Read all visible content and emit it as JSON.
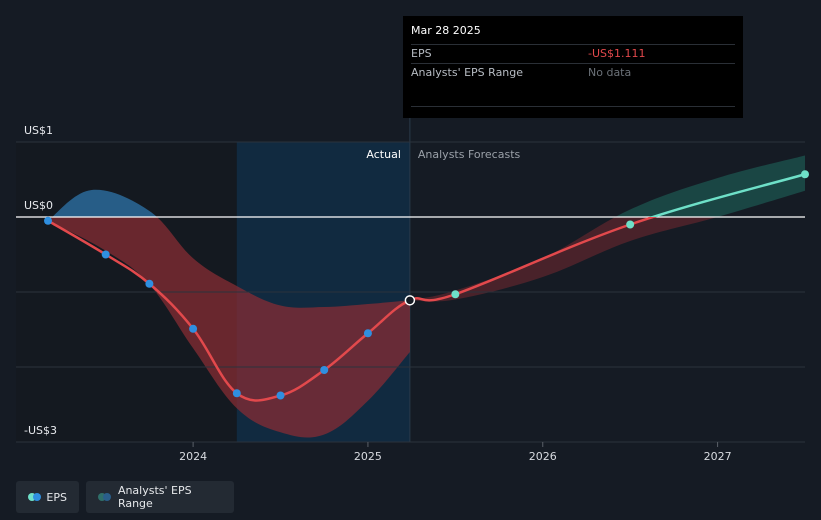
{
  "tooltip": {
    "date": "Mar 28 2025",
    "eps_label": "EPS",
    "eps_value": "-US$1.111",
    "range_label": "Analysts' EPS Range",
    "range_value": "No data"
  },
  "legend": {
    "eps_label": "EPS",
    "range_label": "Analysts' EPS Range"
  },
  "colors": {
    "actual_point": "#2f8fe0",
    "forecast_point": "#6ee0c8",
    "eps_line_negative": "#e2494c",
    "eps_line_positive": "#6ee0c8",
    "range_positive": "#2a6a9a",
    "range_negative": "#8a2c33",
    "actual_band": "#10304a"
  },
  "chart_data": {
    "type": "line",
    "region_labels": {
      "actual": "Actual",
      "forecast": "Analysts Forecasts"
    },
    "y_tick_labels": [
      {
        "value": 1,
        "label": "US$1"
      },
      {
        "value": 0,
        "label": "US$0"
      },
      {
        "value": -3,
        "label": "-US$3"
      }
    ],
    "x_tick_labels": [
      "2024",
      "2025",
      "2026",
      "2027"
    ],
    "x_ticks": [
      2024.0,
      2025.0,
      2026.0,
      2027.0
    ],
    "xlim": [
      2023.17,
      2027.5
    ],
    "ylim": [
      -3,
      1
    ],
    "actual_range": [
      2024.25,
      2025.24
    ],
    "series": [
      {
        "name": "EPS",
        "points": [
          {
            "x": 2023.17,
            "y": -0.05,
            "kind": "actual"
          },
          {
            "x": 2023.5,
            "y": -0.5,
            "kind": "actual"
          },
          {
            "x": 2023.75,
            "y": -0.89,
            "kind": "actual"
          },
          {
            "x": 2024.0,
            "y": -1.49,
            "kind": "actual"
          },
          {
            "x": 2024.25,
            "y": -2.35,
            "kind": "actual"
          },
          {
            "x": 2024.5,
            "y": -2.38,
            "kind": "actual"
          },
          {
            "x": 2024.75,
            "y": -2.04,
            "kind": "actual"
          },
          {
            "x": 2025.0,
            "y": -1.55,
            "kind": "actual"
          },
          {
            "x": 2025.24,
            "y": -1.111,
            "kind": "highlight"
          },
          {
            "x": 2025.5,
            "y": -1.03,
            "kind": "forecast"
          },
          {
            "x": 2026.5,
            "y": -0.1,
            "kind": "forecast"
          },
          {
            "x": 2027.5,
            "y": 0.57,
            "kind": "forecast"
          }
        ]
      }
    ],
    "eps_range_past": {
      "upper": [
        [
          2023.17,
          -0.05
        ],
        [
          2023.42,
          0.36
        ],
        [
          2023.75,
          0.08
        ],
        [
          2024.0,
          -0.55
        ],
        [
          2024.25,
          -0.92
        ],
        [
          2024.5,
          -1.18
        ],
        [
          2024.75,
          -1.2
        ],
        [
          2025.0,
          -1.16
        ],
        [
          2025.24,
          -1.11
        ]
      ],
      "lower": [
        [
          2025.24,
          -1.8
        ],
        [
          2025.0,
          -2.45
        ],
        [
          2024.75,
          -2.9
        ],
        [
          2024.5,
          -2.87
        ],
        [
          2024.25,
          -2.55
        ],
        [
          2024.0,
          -1.75
        ],
        [
          2023.75,
          -0.9
        ],
        [
          2023.5,
          -0.45
        ],
        [
          2023.17,
          -0.05
        ]
      ]
    },
    "eps_range_forecast": {
      "upper": [
        [
          2025.24,
          -1.11
        ],
        [
          2025.5,
          -0.98
        ],
        [
          2026.0,
          -0.55
        ],
        [
          2026.5,
          0.1
        ],
        [
          2027.0,
          0.52
        ],
        [
          2027.5,
          0.82
        ]
      ],
      "lower": [
        [
          2027.5,
          0.35
        ],
        [
          2027.0,
          0.0
        ],
        [
          2026.5,
          -0.32
        ],
        [
          2026.0,
          -0.8
        ],
        [
          2025.5,
          -1.1
        ],
        [
          2025.24,
          -1.11
        ]
      ]
    }
  }
}
